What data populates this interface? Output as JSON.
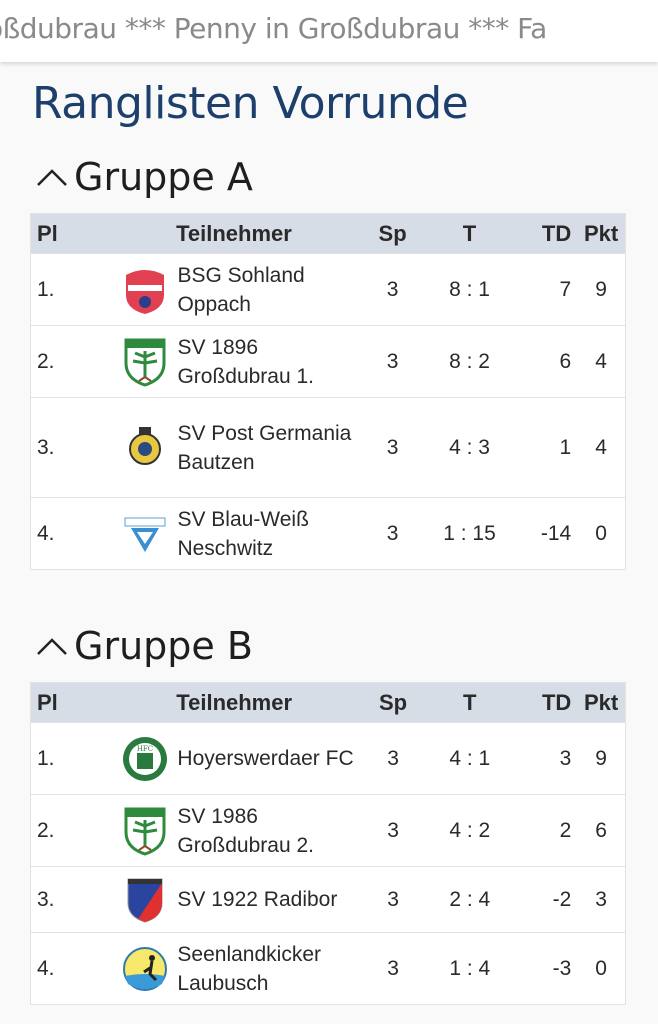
{
  "ticker": {
    "text": "oßdubrau *** Penny in Großdubrau *** Fa"
  },
  "page_title": "Ranglisten Vorrunde",
  "columns": {
    "pl": "Pl",
    "team": "Teilnehmer",
    "sp": "Sp",
    "t": "T",
    "td": "TD",
    "pkt": "Pkt"
  },
  "groups": [
    {
      "title": "Gruppe A",
      "icon": "chevron-up-icon",
      "rows": [
        {
          "pl": "1.",
          "team": "BSG Sohland Oppach",
          "logo": "bsg-sohland-logo",
          "sp": "3",
          "t": "8 : 1",
          "td": "7",
          "pkt": "9"
        },
        {
          "pl": "2.",
          "team": "SV 1896 Großdubrau 1.",
          "logo": "sv-grossdubrau-logo",
          "sp": "3",
          "t": "8 : 2",
          "td": "6",
          "pkt": "4"
        },
        {
          "pl": "3.",
          "team": "SV Post Germania Bautzen",
          "logo": "sv-post-germania-logo",
          "sp": "3",
          "t": "4 : 3",
          "td": "1",
          "pkt": "4"
        },
        {
          "pl": "4.",
          "team": "SV Blau-Weiß Neschwitz",
          "logo": "sv-blau-weiss-logo",
          "sp": "3",
          "t": "1 : 15",
          "td": "-14",
          "pkt": "0"
        }
      ]
    },
    {
      "title": "Gruppe B",
      "icon": "chevron-up-icon",
      "rows": [
        {
          "pl": "1.",
          "team": "Hoyerswerdaer FC",
          "logo": "hfc-logo",
          "sp": "3",
          "t": "4 : 1",
          "td": "3",
          "pkt": "9"
        },
        {
          "pl": "2.",
          "team": "SV 1986 Großdubrau 2.",
          "logo": "sv-grossdubrau-logo",
          "sp": "3",
          "t": "4 : 2",
          "td": "2",
          "pkt": "6"
        },
        {
          "pl": "3.",
          "team": "SV 1922 Radibor",
          "logo": "sv-radibor-logo",
          "sp": "3",
          "t": "2 : 4",
          "td": "-2",
          "pkt": "3"
        },
        {
          "pl": "4.",
          "team": "Seenlandkicker Laubusch",
          "logo": "seenlandkicker-logo",
          "sp": "3",
          "t": "1 : 4",
          "td": "-3",
          "pkt": "0"
        }
      ]
    }
  ]
}
